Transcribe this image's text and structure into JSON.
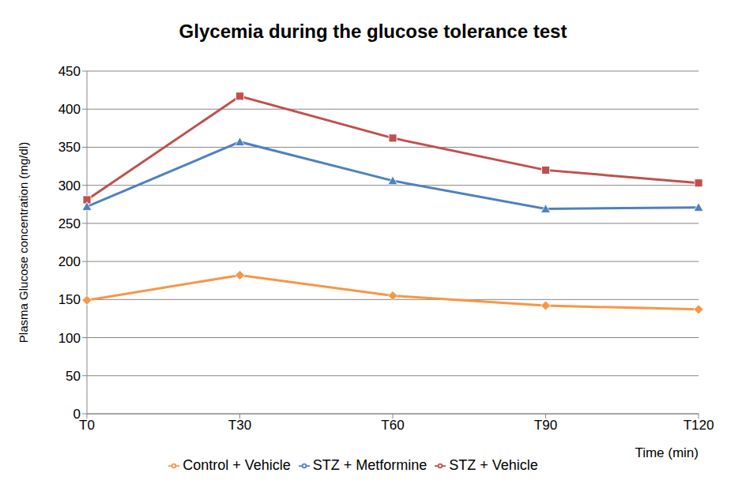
{
  "chart_data": {
    "type": "line",
    "title": "Glycemia during the glucose tolerance test",
    "x_label": "Time (min)",
    "y_label": "Plasma Glucose concentration (mg/dl)",
    "categories": [
      "T0",
      "T30",
      "T60",
      "T90",
      "T120"
    ],
    "series": [
      {
        "name": "Control + Vehicle",
        "color": "#f79646",
        "marker": "diamond",
        "values": [
          149,
          182,
          155,
          142,
          137
        ]
      },
      {
        "name": "STZ + Vehicle",
        "color": "#c0504d",
        "marker": "square",
        "values": [
          281,
          417,
          362,
          320,
          303
        ]
      },
      {
        "name": "STZ + Metformine",
        "color": "#4f81bd",
        "marker": "triangle",
        "values": [
          272,
          357,
          306,
          269,
          271
        ]
      }
    ],
    "ylim": [
      0,
      450
    ],
    "yticks": [
      0,
      50,
      100,
      150,
      200,
      250,
      300,
      350,
      400,
      450
    ],
    "grid": true,
    "legend": "bottom"
  }
}
